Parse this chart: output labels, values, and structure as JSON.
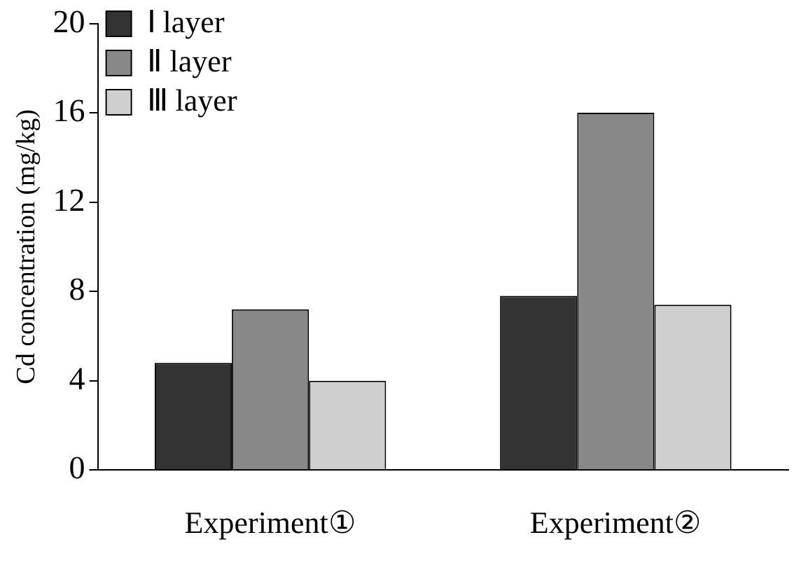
{
  "chart_data": {
    "type": "bar",
    "ylabel": "Cd concentration (mg/kg)",
    "categories": [
      "Experiment①",
      "Experiment②"
    ],
    "series": [
      {
        "name": "Ⅰ layer",
        "color": "#333333",
        "values": [
          4.8,
          7.8
        ]
      },
      {
        "name": "Ⅱ layer",
        "color": "#888888",
        "values": [
          7.2,
          16.0
        ]
      },
      {
        "name": "Ⅲ layer",
        "color": "#cfcfcf",
        "values": [
          4.0,
          7.4
        ]
      }
    ],
    "ylim": [
      0,
      20
    ],
    "yticks": [
      0,
      4,
      8,
      12,
      16,
      20
    ],
    "grid": false,
    "legend": "top left"
  }
}
